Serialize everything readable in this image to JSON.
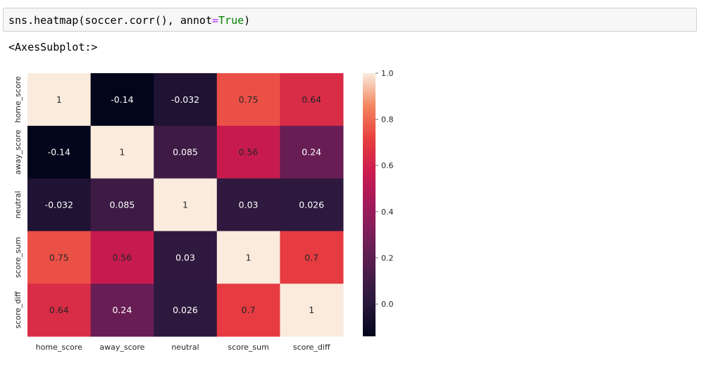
{
  "code_cell": {
    "prefix": "sns.heatmap(soccer.corr(), annot",
    "eq": "=",
    "kw": "True",
    "suffix": ")"
  },
  "output_text": "<AxesSubplot:>",
  "chart_data": {
    "type": "heatmap",
    "rows": [
      "home_score",
      "away_score",
      "neutral",
      "score_sum",
      "score_diff"
    ],
    "columns": [
      "home_score",
      "away_score",
      "neutral",
      "score_sum",
      "score_diff"
    ],
    "values": [
      [
        1,
        -0.14,
        -0.032,
        0.75,
        0.64
      ],
      [
        -0.14,
        1,
        0.085,
        0.56,
        0.24
      ],
      [
        -0.032,
        0.085,
        1,
        0.03,
        0.026
      ],
      [
        0.75,
        0.56,
        0.03,
        1,
        0.7
      ],
      [
        0.64,
        0.24,
        0.026,
        0.7,
        1
      ]
    ],
    "annotations": [
      [
        "1",
        "-0.14",
        "-0.032",
        "0.75",
        "0.64"
      ],
      [
        "-0.14",
        "1",
        "0.085",
        "0.56",
        "0.24"
      ],
      [
        "-0.032",
        "0.085",
        "1",
        "0.03",
        "0.026"
      ],
      [
        "0.75",
        "0.56",
        "0.03",
        "1",
        "0.7"
      ],
      [
        "0.64",
        "0.24",
        "0.026",
        "0.7",
        "1"
      ]
    ],
    "colorbar": {
      "range": [
        -0.14,
        1.0
      ],
      "ticks": [
        0.0,
        0.2,
        0.4,
        0.6,
        0.8,
        1.0
      ],
      "tick_labels": [
        "0.0",
        "0.2",
        "0.4",
        "0.6",
        "0.8",
        "1.0"
      ],
      "colormap": "rocket"
    }
  }
}
